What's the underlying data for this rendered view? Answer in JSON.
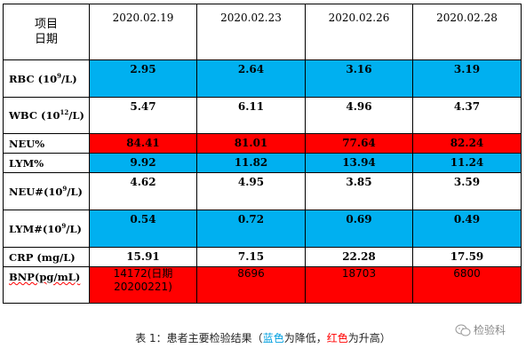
{
  "header": {
    "label_line1": "项目",
    "label_line2": "日期",
    "dates": [
      "2020.02.19",
      "2020.02.23",
      "2020.02.26",
      "2020.02.28"
    ]
  },
  "rows": [
    {
      "label": "RBC (10",
      "sup": "9",
      "unit": "/L)",
      "values": [
        "2.95",
        "2.64",
        "3.16",
        "3.19"
      ],
      "highlight": "blue"
    },
    {
      "label": "WBC (10",
      "sup": "12",
      "unit": "/L)",
      "values": [
        "5.47",
        "6.11",
        "4.96",
        "4.37"
      ],
      "highlight": "none"
    },
    {
      "label": "NEU%",
      "values": [
        "84.41",
        "81.01",
        "77.64",
        "82.24"
      ],
      "highlight": "red"
    },
    {
      "label": "LYM%",
      "values": [
        "9.92",
        "11.82",
        "13.94",
        "11.24"
      ],
      "highlight": "blue"
    },
    {
      "label": "NEU#(10",
      "sup": "9",
      "unit": "/L)",
      "values": [
        "4.62",
        "4.95",
        "3.85",
        "3.59"
      ],
      "highlight": "none"
    },
    {
      "label": "LYM#(10",
      "sup": "9",
      "unit": "/L)",
      "values": [
        "0.54",
        "0.72",
        "0.69",
        "0.49"
      ],
      "highlight": "blue"
    },
    {
      "label": "CRP (mg/L)",
      "values": [
        "15.91",
        "7.15",
        "22.28",
        "17.59"
      ],
      "highlight": "none"
    },
    {
      "label": "BNP(pg/mL)",
      "values": [
        "14172(日期",
        "8696",
        "18703",
        "6800"
      ],
      "value_line2": "20200221)",
      "highlight": "red"
    }
  ],
  "caption": {
    "prefix": "表 1：患者主要检验结果（",
    "blue_word": "蓝色",
    "mid": "为降低，",
    "red_word": "红色",
    "suffix": "为升高）"
  },
  "watermark": {
    "text": "检验科",
    "icon": "wechat-logo-icon"
  },
  "colors": {
    "blue": "#00b0f0",
    "red": "#ff0000"
  }
}
